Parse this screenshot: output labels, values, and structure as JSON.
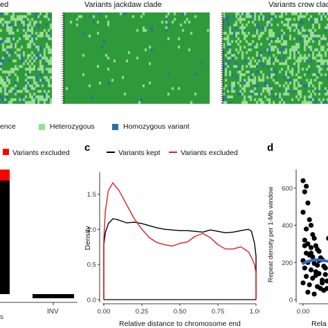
{
  "top": {
    "panels": [
      {
        "title": "ed"
      },
      {
        "title": "Variants jackdaw clade"
      },
      {
        "title": "Variants crow clade"
      }
    ],
    "colors": {
      "reference": "#2f9a3b",
      "heterozygous": "#97e08f",
      "homozygous": "#2b6fa8"
    },
    "legend": [
      {
        "label": "ence",
        "color": "#2f9a3b"
      },
      {
        "label": "Heterozygous",
        "color": "#97e08f"
      },
      {
        "label": "Homozygous variant",
        "color": "#2b6fa8"
      }
    ]
  },
  "panel_b": {
    "legend_label": "Variants excluded",
    "x_categories": [
      "s",
      "INV"
    ]
  },
  "panel_c": {
    "letter": "c"
  },
  "panel_d": {
    "letter": "d"
  },
  "chart_data": [
    {
      "panel": "b",
      "type": "bar",
      "categories": [
        "s",
        "INV"
      ],
      "series": [
        {
          "name": "Variants kept",
          "color": "#000000",
          "values": [
            0.83,
            0.02
          ]
        },
        {
          "name": "Variants excluded",
          "color": "#ff0000",
          "values": [
            0.05,
            0.0
          ]
        }
      ],
      "legend": [
        "Variants excluded"
      ]
    },
    {
      "panel": "c",
      "type": "line",
      "title": "",
      "xlabel": "Relative distance to chromosome end",
      "ylabel": "Density",
      "xlim": [
        0,
        1
      ],
      "ylim": [
        0,
        1.75
      ],
      "xticks": [
        "0.00",
        "0.25",
        "0.50",
        "0.75",
        "1.00"
      ],
      "yticks": [
        "0.0",
        "0.5",
        "1.0",
        "1.5"
      ],
      "legend": "top",
      "series": [
        {
          "name": "Variants kept",
          "color": "#000000",
          "x": [
            0.0,
            0.01,
            0.03,
            0.06,
            0.1,
            0.15,
            0.2,
            0.25,
            0.3,
            0.35,
            0.4,
            0.45,
            0.5,
            0.55,
            0.6,
            0.65,
            0.7,
            0.75,
            0.8,
            0.85,
            0.9,
            0.95,
            0.97,
            0.99,
            1.0
          ],
          "y": [
            0.78,
            0.95,
            1.08,
            1.15,
            1.13,
            1.09,
            1.1,
            1.08,
            1.05,
            1.02,
            1.0,
            0.99,
            0.98,
            0.98,
            0.97,
            0.96,
            0.99,
            0.97,
            0.95,
            0.96,
            0.98,
            1.0,
            0.97,
            0.8,
            0.62
          ]
        },
        {
          "name": "Variants excluded",
          "color": "#dd1f1f",
          "x": [
            0.0,
            0.01,
            0.03,
            0.06,
            0.1,
            0.15,
            0.2,
            0.25,
            0.3,
            0.35,
            0.4,
            0.45,
            0.5,
            0.55,
            0.6,
            0.65,
            0.7,
            0.75,
            0.8,
            0.85,
            0.9,
            0.95,
            0.97,
            0.99,
            1.0
          ],
          "y": [
            0.85,
            1.25,
            1.55,
            1.66,
            1.55,
            1.35,
            1.15,
            1.0,
            0.88,
            0.81,
            0.78,
            0.76,
            0.8,
            0.82,
            0.9,
            0.94,
            0.88,
            0.78,
            0.72,
            0.72,
            0.75,
            0.68,
            0.6,
            0.5,
            0.38
          ]
        }
      ]
    },
    {
      "panel": "d",
      "type": "scatter",
      "xlabel": "Rela",
      "ylabel": "Repeat density per 1-Mb window",
      "ylim": [
        0,
        700
      ],
      "yticks": [
        "0",
        "200",
        "400",
        "600"
      ],
      "xticks": [
        "0.00"
      ],
      "series": [
        {
          "name": "windows",
          "color": "#000000",
          "x": [
            0.0,
            0.01,
            0.02,
            0.03,
            0.0,
            0.04,
            0.05,
            0.02,
            0.06,
            0.07,
            0.01,
            0.03,
            0.08,
            0.05,
            0.09,
            0.1,
            0.02,
            0.04,
            0.06,
            0.11,
            0.12,
            0.0,
            0.03,
            0.07,
            0.09,
            0.13,
            0.01,
            0.05,
            0.08,
            0.1,
            0.14,
            0.02,
            0.06,
            0.12,
            0.15,
            0.0,
            0.04,
            0.09,
            0.11,
            0.13,
            0.03,
            0.07,
            0.16,
            0.01,
            0.05,
            0.1,
            0.14,
            0.08,
            0.12,
            0.15
          ],
          "y": [
            640,
            580,
            610,
            520,
            470,
            430,
            400,
            380,
            350,
            330,
            320,
            300,
            290,
            280,
            270,
            260,
            250,
            240,
            230,
            225,
            215,
            210,
            200,
            195,
            185,
            180,
            170,
            160,
            150,
            140,
            135,
            125,
            115,
            105,
            100,
            90,
            80,
            70,
            60,
            50,
            40,
            30,
            330,
            290,
            250,
            210,
            170,
            130,
            90,
            60
          ]
        },
        {
          "name": "trend",
          "color": "#3a66c8",
          "x": [
            0.0,
            0.04,
            0.08,
            0.12,
            0.16
          ],
          "y": [
            195,
            208,
            215,
            212,
            205
          ]
        }
      ]
    }
  ]
}
